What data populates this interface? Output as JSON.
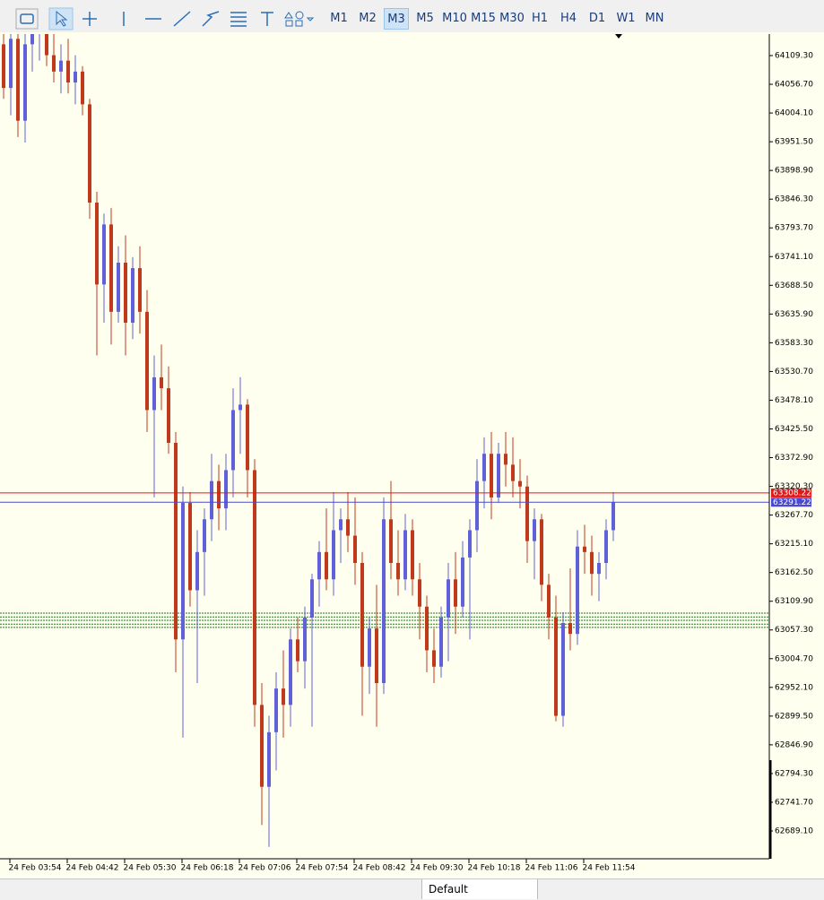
{
  "toolbar": {
    "timeframes": [
      "M1",
      "M2",
      "M3",
      "M5",
      "M10",
      "M15",
      "M30",
      "H1",
      "H4",
      "D1",
      "W1",
      "MN"
    ],
    "active": "M3"
  },
  "chart_data": {
    "type": "candlestick",
    "ohlc": [
      [
        64130,
        64180,
        64030,
        64050
      ],
      [
        64050,
        64160,
        64000,
        64140
      ],
      [
        64140,
        64170,
        63960,
        63990
      ],
      [
        63990,
        64150,
        63950,
        64130
      ],
      [
        64130,
        64180,
        64080,
        64150
      ],
      [
        64150,
        64190,
        64100,
        64170
      ],
      [
        64170,
        64190,
        64090,
        64110
      ],
      [
        64110,
        64160,
        64060,
        64080
      ],
      [
        64080,
        64130,
        64040,
        64100
      ],
      [
        64100,
        64140,
        64040,
        64060
      ],
      [
        64060,
        64110,
        64020,
        64080
      ],
      [
        64080,
        64090,
        64000,
        64020
      ],
      [
        64020,
        64030,
        63810,
        63840
      ],
      [
        63840,
        63860,
        63560,
        63690
      ],
      [
        63690,
        63820,
        63620,
        63800
      ],
      [
        63800,
        63830,
        63580,
        63640
      ],
      [
        63640,
        63760,
        63620,
        63730
      ],
      [
        63730,
        63780,
        63560,
        63620
      ],
      [
        63620,
        63740,
        63590,
        63720
      ],
      [
        63720,
        63760,
        63600,
        63640
      ],
      [
        63640,
        63680,
        63420,
        63460
      ],
      [
        63460,
        63560,
        63300,
        63520
      ],
      [
        63520,
        63580,
        63460,
        63500
      ],
      [
        63500,
        63540,
        63380,
        63400
      ],
      [
        63400,
        63420,
        62980,
        63040
      ],
      [
        63040,
        63320,
        62860,
        63290
      ],
      [
        63290,
        63310,
        63100,
        63130
      ],
      [
        63130,
        63240,
        62960,
        63200
      ],
      [
        63200,
        63280,
        63120,
        63260
      ],
      [
        63260,
        63380,
        63220,
        63330
      ],
      [
        63330,
        63360,
        63240,
        63280
      ],
      [
        63280,
        63380,
        63240,
        63350
      ],
      [
        63350,
        63500,
        63300,
        63460
      ],
      [
        63460,
        63520,
        63380,
        63470
      ],
      [
        63470,
        63480,
        63300,
        63350
      ],
      [
        63350,
        63370,
        62880,
        62920
      ],
      [
        62920,
        62960,
        62700,
        62770
      ],
      [
        62770,
        62900,
        62660,
        62870
      ],
      [
        62870,
        62980,
        62800,
        62950
      ],
      [
        62950,
        63020,
        62860,
        62920
      ],
      [
        62920,
        63060,
        62880,
        63040
      ],
      [
        63040,
        63080,
        62980,
        63000
      ],
      [
        63000,
        63100,
        62950,
        63080
      ],
      [
        63080,
        63160,
        62880,
        63150
      ],
      [
        63150,
        63220,
        63100,
        63200
      ],
      [
        63200,
        63280,
        63130,
        63150
      ],
      [
        63150,
        63310,
        63120,
        63240
      ],
      [
        63240,
        63280,
        63180,
        63260
      ],
      [
        63260,
        63310,
        63200,
        63230
      ],
      [
        63230,
        63300,
        63140,
        63180
      ],
      [
        63180,
        63200,
        62900,
        62990
      ],
      [
        62990,
        63080,
        62940,
        63060
      ],
      [
        63060,
        63140,
        62880,
        62960
      ],
      [
        62960,
        63300,
        62940,
        63260
      ],
      [
        63260,
        63330,
        63150,
        63180
      ],
      [
        63180,
        63240,
        63120,
        63150
      ],
      [
        63150,
        63270,
        63130,
        63240
      ],
      [
        63240,
        63260,
        63120,
        63150
      ],
      [
        63150,
        63180,
        63040,
        63100
      ],
      [
        63100,
        63120,
        62980,
        63020
      ],
      [
        63020,
        63060,
        62960,
        62990
      ],
      [
        62990,
        63100,
        62970,
        63080
      ],
      [
        63080,
        63180,
        63000,
        63150
      ],
      [
        63150,
        63200,
        63050,
        63100
      ],
      [
        63100,
        63220,
        63080,
        63190
      ],
      [
        63190,
        63260,
        63040,
        63240
      ],
      [
        63240,
        63370,
        63200,
        63330
      ],
      [
        63330,
        63410,
        63280,
        63380
      ],
      [
        63380,
        63420,
        63260,
        63300
      ],
      [
        63300,
        63400,
        63290,
        63380
      ],
      [
        63380,
        63420,
        63320,
        63360
      ],
      [
        63360,
        63410,
        63300,
        63330
      ],
      [
        63330,
        63370,
        63280,
        63320
      ],
      [
        63320,
        63340,
        63180,
        63220
      ],
      [
        63220,
        63280,
        63150,
        63260
      ],
      [
        63260,
        63270,
        63110,
        63140
      ],
      [
        63140,
        63160,
        63040,
        63080
      ],
      [
        63080,
        63120,
        62890,
        62900
      ],
      [
        62900,
        63090,
        62880,
        63070
      ],
      [
        63070,
        63170,
        63020,
        63050
      ],
      [
        63050,
        63240,
        63030,
        63210
      ],
      [
        63210,
        63250,
        63160,
        63200
      ],
      [
        63200,
        63230,
        63120,
        63160
      ],
      [
        63160,
        63200,
        63110,
        63180
      ],
      [
        63180,
        63260,
        63150,
        63240
      ],
      [
        63240,
        63310,
        63220,
        63291.22
      ]
    ],
    "up_color": "#6060d8",
    "down_color": "#c0391c",
    "ylim": [
      62638.2,
      64148.7
    ],
    "yticks": [
      {
        "value": 64109.3,
        "label": "64109.30"
      },
      {
        "value": 64056.7,
        "label": "64056.70"
      },
      {
        "value": 64004.1,
        "label": "64004.10"
      },
      {
        "value": 63951.5,
        "label": "63951.50"
      },
      {
        "value": 63898.9,
        "label": "63898.90"
      },
      {
        "value": 63846.3,
        "label": "63846.30"
      },
      {
        "value": 63793.7,
        "label": "63793.70"
      },
      {
        "value": 63741.1,
        "label": "63741.10"
      },
      {
        "value": 63688.5,
        "label": "63688.50"
      },
      {
        "value": 63635.9,
        "label": "63635.90"
      },
      {
        "value": 63583.3,
        "label": "63583.30"
      },
      {
        "value": 63530.7,
        "label": "63530.70"
      },
      {
        "value": 63478.1,
        "label": "63478.10"
      },
      {
        "value": 63425.5,
        "label": "63425.50"
      },
      {
        "value": 63372.9,
        "label": "63372.90"
      },
      {
        "value": 63320.3,
        "label": "63320.30"
      },
      {
        "value": 63267.7,
        "label": "63267.70"
      },
      {
        "value": 63215.1,
        "label": "63215.10"
      },
      {
        "value": 63162.5,
        "label": "63162.50"
      },
      {
        "value": 63109.9,
        "label": "63109.90"
      },
      {
        "value": 63057.3,
        "label": "63057.30"
      },
      {
        "value": 63004.7,
        "label": "63004.70"
      },
      {
        "value": 62952.1,
        "label": "62952.10"
      },
      {
        "value": 62899.5,
        "label": "62899.50"
      },
      {
        "value": 62846.9,
        "label": "62846.90"
      },
      {
        "value": 62794.3,
        "label": "62794.30"
      },
      {
        "value": 62741.7,
        "label": "62741.70"
      },
      {
        "value": 62689.1,
        "label": "62689.10"
      }
    ],
    "xtick_labels": [
      "24 Feb 03:54",
      "24 Feb 04:42",
      "24 Feb 05:30",
      "24 Feb 06:18",
      "24 Feb 07:06",
      "24 Feb 07:54",
      "24 Feb 08:42",
      "24 Feb 09:30",
      "24 Feb 10:18",
      "24 Feb 11:06",
      "24 Feb 11:54"
    ],
    "ask": 63308.22,
    "ask_color": "#e01818",
    "bid": 63291.22,
    "bid_color": "#4a4ad0",
    "levels": [
      63088,
      63081,
      63075,
      63068,
      63062
    ],
    "level_color": "#1a7a1a"
  },
  "status_bar": {
    "tab": "Default"
  }
}
